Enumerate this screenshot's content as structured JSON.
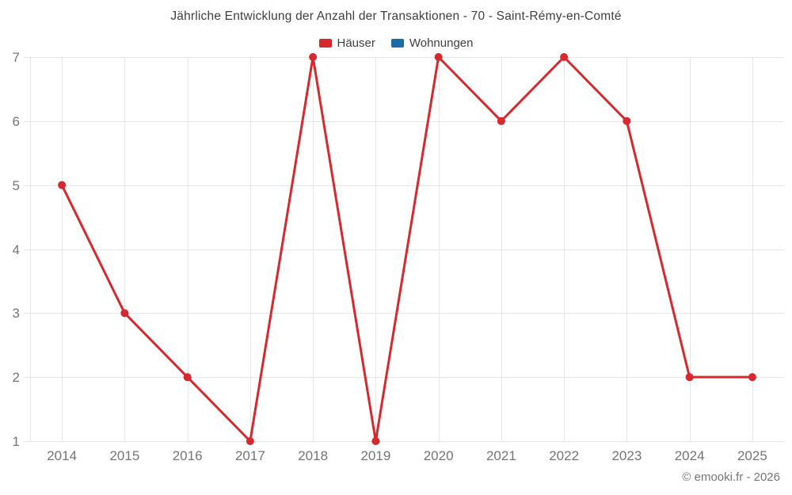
{
  "title": "Jährliche Entwicklung der Anzahl der Transaktionen - 70 - Saint-Rémy-en-Comté",
  "legend": {
    "items": [
      {
        "label": "Häuser",
        "color": "#d7282e"
      },
      {
        "label": "Wohnungen",
        "color": "#1a6da4"
      }
    ]
  },
  "footer": {
    "copyright": "© emooki.fr - 2026"
  },
  "colors": {
    "grid": "#e6e6e6",
    "tick_text": "#757575",
    "title_text": "#3f3f3f"
  },
  "chart_data": {
    "type": "line",
    "title": "Jährliche Entwicklung der Anzahl der Transaktionen - 70 - Saint-Rémy-en-Comté",
    "categories": [
      "2014",
      "2015",
      "2016",
      "2017",
      "2018",
      "2019",
      "2020",
      "2021",
      "2022",
      "2023",
      "2024",
      "2025"
    ],
    "series": [
      {
        "name": "Häuser",
        "color": "#d7282e",
        "values": [
          5,
          3,
          2,
          1,
          7,
          1,
          7,
          6,
          7,
          6,
          2,
          2
        ]
      },
      {
        "name": "Wohnungen",
        "color": "#1a6da4",
        "values": []
      }
    ],
    "xlabel": "",
    "ylabel": "",
    "ylim": [
      1,
      7
    ],
    "yticks": [
      1,
      2,
      3,
      4,
      5,
      6,
      7
    ],
    "grid": true,
    "legend_position": "top"
  }
}
